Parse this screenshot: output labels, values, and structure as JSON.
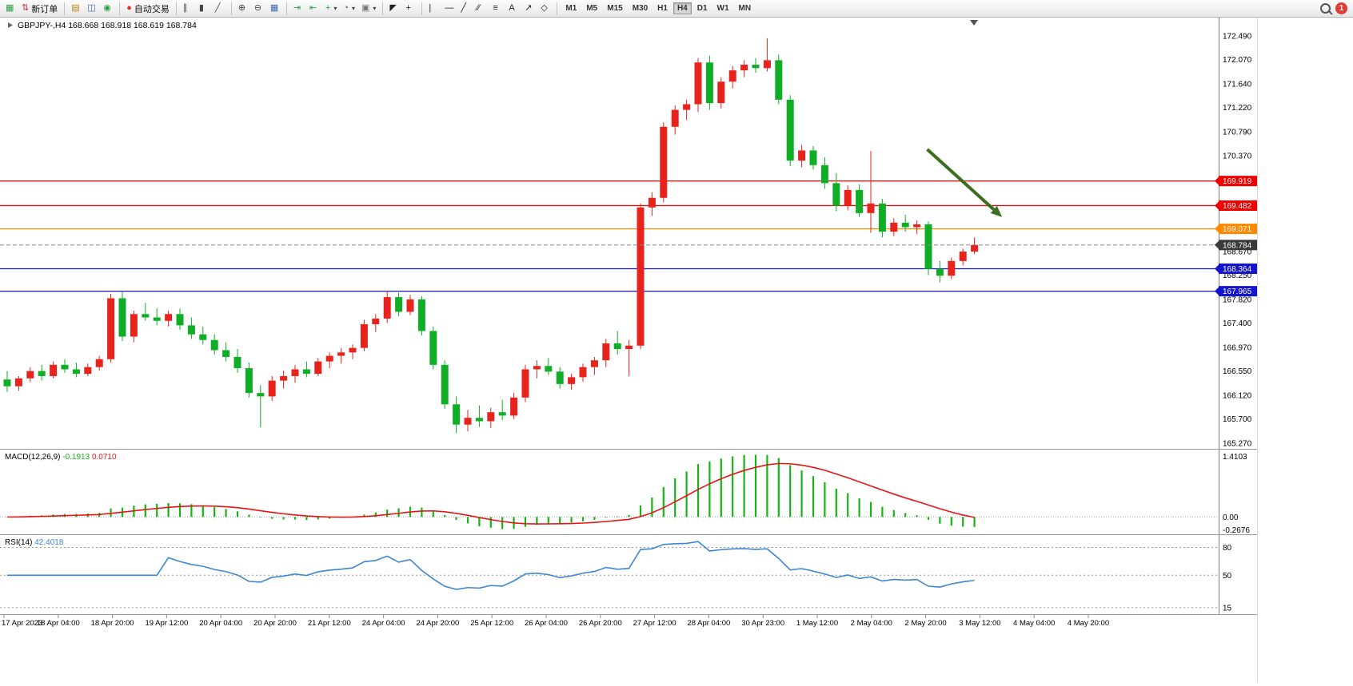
{
  "toolbar": {
    "groups": [
      [
        {
          "name": "new-chart-button",
          "glyph": "▦",
          "color": "#2f9e44"
        },
        {
          "name": "new-order-button",
          "glyph": "⇅",
          "color": "#c23636",
          "label": "新订单"
        }
      ],
      [
        {
          "name": "market-watch-button",
          "glyph": "▤",
          "color": "#b8860b"
        },
        {
          "name": "data-window-button",
          "glyph": "◫",
          "color": "#4169aa"
        },
        {
          "name": "navigator-button",
          "glyph": "◉",
          "color": "#2f9e44"
        }
      ],
      [
        {
          "name": "auto-trading-button",
          "glyph": "●",
          "color": "#d9342b",
          "label": "自动交易"
        }
      ],
      [
        {
          "name": "bar-chart-button",
          "glyph": "∥",
          "color": "#444444"
        },
        {
          "name": "candlestick-chart-button",
          "glyph": "▮",
          "color": "#444444"
        },
        {
          "name": "line-chart-button",
          "glyph": "╱",
          "color": "#444444"
        }
      ],
      [
        {
          "name": "zoom-in-button",
          "glyph": "⊕",
          "color": "#444444"
        },
        {
          "name": "zoom-out-button",
          "glyph": "⊖",
          "color": "#444444"
        },
        {
          "name": "tile-windows-button",
          "glyph": "▦",
          "color": "#4169aa"
        }
      ],
      [
        {
          "name": "auto-scroll-button",
          "glyph": "⇥",
          "color": "#2f9e44"
        },
        {
          "name": "chart-shift-button",
          "glyph": "⇤",
          "color": "#2f9e44"
        },
        {
          "name": "indicators-button",
          "glyph": "+",
          "color": "#2f9e44",
          "caret": true
        },
        {
          "name": "periods-button",
          "glyph": "◔",
          "color": "#4169aa",
          "caret": true
        },
        {
          "name": "templates-button",
          "glyph": "▣",
          "color": "#777777",
          "caret": true
        }
      ],
      [
        {
          "name": "cursor-button",
          "glyph": "◤",
          "color": "#222222"
        },
        {
          "name": "crosshair-button",
          "glyph": "+",
          "color": "#222222"
        }
      ],
      [
        {
          "name": "vertical-line-button",
          "glyph": "|",
          "color": "#222222"
        },
        {
          "name": "horizontal-line-button",
          "glyph": "—",
          "color": "#222222"
        },
        {
          "name": "trendline-button",
          "glyph": "╱",
          "color": "#222222"
        },
        {
          "name": "equidistant-channel-button",
          "glyph": "∕∕",
          "color": "#222222"
        },
        {
          "name": "fibonacci-button",
          "glyph": "≡",
          "color": "#222222"
        },
        {
          "name": "text-button",
          "glyph": "A",
          "color": "#222222"
        },
        {
          "name": "arrows-button",
          "glyph": "↗",
          "color": "#222222"
        },
        {
          "name": "shapes-button",
          "glyph": "◇",
          "color": "#222222"
        }
      ]
    ],
    "timeframes": [
      "M1",
      "M5",
      "M15",
      "M30",
      "H1",
      "H4",
      "D1",
      "W1",
      "MN"
    ],
    "active_timeframe": "H4",
    "notification_count": "1"
  },
  "chart_data": [
    {
      "type": "candlestick",
      "symbol": "GBPJPY-",
      "timeframe": "H4",
      "title": "GBPJPY-,H4",
      "ohlc": {
        "open": "168.668",
        "high": "168.918",
        "low": "168.619",
        "close": "168.784"
      },
      "up_color": "#e8231c",
      "down_color": "#0fae26",
      "ylim": [
        165.17,
        172.82
      ],
      "y_ticks": [
        "172.490",
        "172.070",
        "171.640",
        "171.220",
        "170.790",
        "170.370",
        "168.670",
        "168.250",
        "167.820",
        "167.400",
        "166.970",
        "166.550",
        "166.120",
        "165.700",
        "165.270"
      ],
      "x_labels": [
        "17 Apr 2023",
        "18 Apr 04:00",
        "18 Apr 20:00",
        "19 Apr 12:00",
        "20 Apr 04:00",
        "20 Apr 20:00",
        "21 Apr 12:00",
        "24 Apr 04:00",
        "24 Apr 20:00",
        "25 Apr 12:00",
        "26 Apr 04:00",
        "26 Apr 20:00",
        "27 Apr 12:00",
        "28 Apr 04:00",
        "30 Apr 23:00",
        "1 May 12:00",
        "2 May 04:00",
        "2 May 20:00",
        "3 May 12:00",
        "4 May 04:00",
        "4 May 20:00"
      ],
      "h_lines": [
        {
          "price": 169.919,
          "label": "169.919",
          "color": "#f20000"
        },
        {
          "price": 169.482,
          "label": "169.482",
          "color": "#f20000"
        },
        {
          "price": 169.071,
          "label": "169.071",
          "color": "#ff8a00"
        },
        {
          "price": 168.364,
          "label": "168.364",
          "color": "#1414cc"
        },
        {
          "price": 167.965,
          "label": "167.965",
          "color": "#1414cc"
        }
      ],
      "current_price": {
        "price": 168.784,
        "label": "168.784",
        "line_color": "#888888",
        "badge_color": "#3a3a3a"
      },
      "arrow": {
        "from_bar": 79.9,
        "from_price": 170.48,
        "to_bar": 86.4,
        "to_price": 169.28,
        "color": "#3c6e1f"
      },
      "candles": [
        [
          166.4,
          166.55,
          166.18,
          166.28
        ],
        [
          166.28,
          166.46,
          166.2,
          166.42
        ],
        [
          166.42,
          166.62,
          166.35,
          166.55
        ],
        [
          166.55,
          166.66,
          166.38,
          166.46
        ],
        [
          166.46,
          166.72,
          166.42,
          166.66
        ],
        [
          166.66,
          166.76,
          166.52,
          166.58
        ],
        [
          166.58,
          166.7,
          166.44,
          166.5
        ],
        [
          166.5,
          166.68,
          166.46,
          166.62
        ],
        [
          166.62,
          166.82,
          166.56,
          166.76
        ],
        [
          166.76,
          167.92,
          166.7,
          167.84
        ],
        [
          167.84,
          167.96,
          167.08,
          167.16
        ],
        [
          167.16,
          167.62,
          167.06,
          167.56
        ],
        [
          167.56,
          167.76,
          167.44,
          167.5
        ],
        [
          167.5,
          167.66,
          167.36,
          167.44
        ],
        [
          167.44,
          167.62,
          167.34,
          167.56
        ],
        [
          167.56,
          167.66,
          167.28,
          167.36
        ],
        [
          167.36,
          167.5,
          167.12,
          167.2
        ],
        [
          167.2,
          167.34,
          167.02,
          167.1
        ],
        [
          167.1,
          167.2,
          166.84,
          166.92
        ],
        [
          166.92,
          167.06,
          166.72,
          166.8
        ],
        [
          166.8,
          166.94,
          166.52,
          166.6
        ],
        [
          166.6,
          166.7,
          166.08,
          166.16
        ],
        [
          166.16,
          166.3,
          165.55,
          166.1
        ],
        [
          166.1,
          166.46,
          166.02,
          166.38
        ],
        [
          166.38,
          166.56,
          166.24,
          166.46
        ],
        [
          166.46,
          166.66,
          166.34,
          166.58
        ],
        [
          166.58,
          166.72,
          166.44,
          166.5
        ],
        [
          166.5,
          166.78,
          166.46,
          166.72
        ],
        [
          166.72,
          166.88,
          166.6,
          166.82
        ],
        [
          166.82,
          166.96,
          166.68,
          166.88
        ],
        [
          166.88,
          167.02,
          166.76,
          166.96
        ],
        [
          166.96,
          167.46,
          166.9,
          167.38
        ],
        [
          167.38,
          167.56,
          167.24,
          167.48
        ],
        [
          167.48,
          167.97,
          167.4,
          167.86
        ],
        [
          167.86,
          167.94,
          167.52,
          167.6
        ],
        [
          167.6,
          167.9,
          167.54,
          167.82
        ],
        [
          167.82,
          167.88,
          167.18,
          167.26
        ],
        [
          167.26,
          167.34,
          166.58,
          166.66
        ],
        [
          166.66,
          166.74,
          165.88,
          165.96
        ],
        [
          165.96,
          166.1,
          165.45,
          165.6
        ],
        [
          165.6,
          165.86,
          165.48,
          165.72
        ],
        [
          165.72,
          165.94,
          165.56,
          165.66
        ],
        [
          165.66,
          165.9,
          165.54,
          165.82
        ],
        [
          165.82,
          166.04,
          165.68,
          165.76
        ],
        [
          165.76,
          166.16,
          165.7,
          166.08
        ],
        [
          166.08,
          166.66,
          166.0,
          166.58
        ],
        [
          166.58,
          166.74,
          166.42,
          166.64
        ],
        [
          166.64,
          166.78,
          166.48,
          166.54
        ],
        [
          166.54,
          166.62,
          166.24,
          166.32
        ],
        [
          166.32,
          166.5,
          166.22,
          166.44
        ],
        [
          166.44,
          166.68,
          166.36,
          166.62
        ],
        [
          166.62,
          166.8,
          166.48,
          166.74
        ],
        [
          166.74,
          167.12,
          166.62,
          167.04
        ],
        [
          167.04,
          167.26,
          166.84,
          166.94
        ],
        [
          166.94,
          167.1,
          166.46,
          167.0
        ],
        [
          167.0,
          169.52,
          166.94,
          169.45
        ],
        [
          169.45,
          169.72,
          169.3,
          169.62
        ],
        [
          169.62,
          170.96,
          169.54,
          170.88
        ],
        [
          170.88,
          171.26,
          170.74,
          171.18
        ],
        [
          171.18,
          171.36,
          171.0,
          171.28
        ],
        [
          171.28,
          172.1,
          171.14,
          172.02
        ],
        [
          172.02,
          172.14,
          171.18,
          171.3
        ],
        [
          171.3,
          171.76,
          171.2,
          171.68
        ],
        [
          171.68,
          171.96,
          171.56,
          171.88
        ],
        [
          171.88,
          172.06,
          171.76,
          171.98
        ],
        [
          171.98,
          172.1,
          171.84,
          171.92
        ],
        [
          171.92,
          172.45,
          171.86,
          172.06
        ],
        [
          172.06,
          172.16,
          171.28,
          171.36
        ],
        [
          171.36,
          171.44,
          170.18,
          170.28
        ],
        [
          170.28,
          170.56,
          170.16,
          170.46
        ],
        [
          170.46,
          170.54,
          170.12,
          170.2
        ],
        [
          170.2,
          170.34,
          169.78,
          169.88
        ],
        [
          169.88,
          170.06,
          169.38,
          169.48
        ],
        [
          169.48,
          169.84,
          169.4,
          169.76
        ],
        [
          169.76,
          169.86,
          169.28,
          169.35
        ],
        [
          169.35,
          170.45,
          169.0,
          169.52
        ],
        [
          169.52,
          169.6,
          168.92,
          169.02
        ],
        [
          169.02,
          169.26,
          168.94,
          169.18
        ],
        [
          169.18,
          169.32,
          169.02,
          169.1
        ],
        [
          169.1,
          169.22,
          168.98,
          169.15
        ],
        [
          169.15,
          169.2,
          168.25,
          168.36
        ],
        [
          168.36,
          168.5,
          168.12,
          168.24
        ],
        [
          168.24,
          168.56,
          168.18,
          168.5
        ],
        [
          168.5,
          168.72,
          168.42,
          168.668
        ],
        [
          168.668,
          168.918,
          168.619,
          168.784
        ]
      ]
    },
    {
      "type": "macd",
      "label": "MACD(12,26,9)",
      "fast": 12,
      "slow": 26,
      "signal": 9,
      "value_main": "-0.1913",
      "value_signal": "0.0710",
      "scale_labels": {
        "max": "1.4103",
        "zero": "0.00",
        "min": "-0.2676"
      },
      "histogram_color": "#14b514",
      "signal_color": "#e81414"
    },
    {
      "type": "rsi",
      "label": "RSI(14)",
      "period": 14,
      "value": "42.4018",
      "levels": [
        80,
        50,
        15
      ],
      "line_color": "#3e86d2"
    }
  ]
}
